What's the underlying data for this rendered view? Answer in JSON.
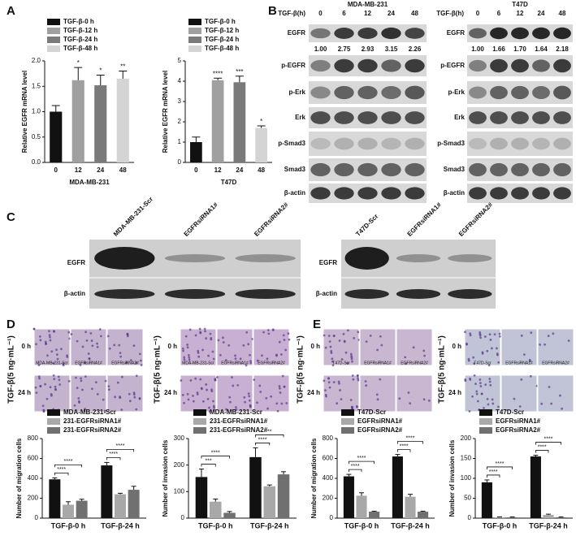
{
  "figure": {
    "panel_labels": [
      "A",
      "B",
      "C",
      "D",
      "E"
    ]
  },
  "blots_b": {
    "cell_lines": [
      "MDA-MB-231",
      "T47D"
    ],
    "time_label": "TGF-β(h)",
    "times": [
      "0",
      "6",
      "12",
      "24",
      "48"
    ],
    "rows": [
      "EGFR",
      "p-EGFR",
      "p-Erk",
      "Erk",
      "p-Smad3",
      "Smad3",
      "β-actin"
    ],
    "egfr_quant": [
      [
        "1.00",
        "2.75",
        "2.93",
        "3.15",
        "2.26"
      ],
      [
        "1.00",
        "1.66",
        "1.70",
        "1.64",
        "2.18"
      ]
    ]
  },
  "blots_c": {
    "lanes": [
      [
        "MDA-MB-231-Scr",
        "EGFRsiRNA1#",
        "EGFRsiRNA2#"
      ],
      [
        "T47D-Scr",
        "EGFRsiRNA1#",
        "EGFRsiRNA2#"
      ]
    ],
    "rows": [
      "EGFR",
      "β-actin"
    ]
  },
  "micrographs": {
    "side_label": "TGF-β(5 ng·mL⁻¹)",
    "rows": [
      "0 h",
      "24 h"
    ],
    "lanes_d": [
      "MDA-MB-231-Scr",
      "EGFRsiRNA1#",
      "EGFRsiRNA2#"
    ],
    "lanes_e": [
      "T47D-Scr",
      "EGFRsiRNA1#",
      "EGFRsiRNA2#"
    ]
  },
  "chart_data": [
    {
      "type": "bar",
      "xlabel": "MDA-MB-231",
      "ylabel": "Relative EGFR mRNA level",
      "categories": [
        "0",
        "12",
        "24",
        "48"
      ],
      "values": [
        1.0,
        1.62,
        1.52,
        1.65
      ],
      "errors": [
        0.12,
        0.25,
        0.2,
        0.15
      ],
      "colors": [
        "#111111",
        "#a0a0a0",
        "#7a7a7a",
        "#d4d4d4"
      ],
      "legend": [
        "TGF-β-0 h",
        "TGF-β-12 h",
        "TGF-β-24 h",
        "TGF-β-48 h"
      ],
      "annotations": [
        null,
        "*",
        "*",
        "**"
      ],
      "ylim": [
        0,
        2
      ],
      "yticks": [
        {
          "value": 0,
          "label": "0.0"
        },
        {
          "value": 0.5,
          "label": "0.5"
        },
        {
          "value": 1,
          "label": "1.0"
        },
        {
          "value": 1.5,
          "label": "1.5"
        },
        {
          "value": 2,
          "label": "2.0"
        }
      ]
    },
    {
      "type": "bar",
      "xlabel": "T47D",
      "ylabel": "Relative EGFR mRNA level",
      "categories": [
        "0",
        "12",
        "24",
        "48"
      ],
      "values": [
        1.0,
        4.05,
        3.95,
        1.7
      ],
      "errors": [
        0.25,
        0.1,
        0.3,
        0.1
      ],
      "colors": [
        "#111111",
        "#a0a0a0",
        "#7a7a7a",
        "#d4d4d4"
      ],
      "legend": [
        "TGF-β-0 h",
        "TGF-β-12 h",
        "TGF-β-24 h",
        "TGF-β-48 h"
      ],
      "annotations": [
        null,
        "****",
        "***",
        "*"
      ],
      "ylim": [
        0,
        5
      ],
      "yticks": [
        0,
        1,
        2,
        3,
        4,
        5
      ]
    },
    {
      "type": "grouped_bar",
      "ylabel": "Number of migration cells",
      "categories": [
        "TGF-β-0 h",
        "TGF-β-24 h"
      ],
      "series": [
        {
          "name": "MDA-MB-231-Scr",
          "color": "#111111",
          "values": [
            390,
            530
          ],
          "errors": [
            15,
            30
          ]
        },
        {
          "name": "231-EGFRsiRNA1#",
          "color": "#a8a8a8",
          "values": [
            135,
            240
          ],
          "errors": [
            30,
            10
          ]
        },
        {
          "name": "231-EGFRsiRNA2#",
          "color": "#707070",
          "values": [
            175,
            285
          ],
          "errors": [
            15,
            35
          ]
        }
      ],
      "annotations": [
        [
          "****",
          "****"
        ],
        [
          "****",
          "****"
        ]
      ],
      "ylim": [
        0,
        800
      ],
      "yticks": [
        0,
        200,
        400,
        600,
        800
      ]
    },
    {
      "type": "grouped_bar",
      "ylabel": "Number of invasion cells",
      "categories": [
        "TGF-β-0 h",
        "TGF-β-24 h"
      ],
      "series": [
        {
          "name": "MDA-MB-231-Scr",
          "color": "#111111",
          "values": [
            155,
            230
          ],
          "errors": [
            30,
            35
          ]
        },
        {
          "name": "231-EGFRsiRNA1#",
          "color": "#a8a8a8",
          "values": [
            62,
            120
          ],
          "errors": [
            10,
            5
          ]
        },
        {
          "name": "231-EGFRsiRNA2#",
          "color": "#707070",
          "values": [
            20,
            165
          ],
          "errors": [
            5,
            10
          ]
        }
      ],
      "annotations": [
        [
          "***",
          "****"
        ],
        [
          "****",
          "**"
        ]
      ],
      "ylim": [
        0,
        300
      ],
      "yticks": [
        0,
        100,
        200,
        300
      ]
    },
    {
      "type": "grouped_bar",
      "ylabel": "Number of migration cells",
      "categories": [
        "TGF-β-0 h",
        "TGF-β-24 h"
      ],
      "series": [
        {
          "name": "T47D-Scr",
          "color": "#111111",
          "values": [
            420,
            620
          ],
          "errors": [
            20,
            20
          ]
        },
        {
          "name": "EGFRsiRNA1#",
          "color": "#a8a8a8",
          "values": [
            225,
            215
          ],
          "errors": [
            30,
            25
          ]
        },
        {
          "name": "EGFRsiRNA2#",
          "color": "#707070",
          "values": [
            65,
            65
          ],
          "errors": [
            5,
            5
          ]
        }
      ],
      "annotations": [
        [
          "****",
          "****"
        ],
        [
          "****",
          "****"
        ]
      ],
      "ylim": [
        0,
        800
      ],
      "yticks": [
        0,
        200,
        400,
        600,
        800
      ]
    },
    {
      "type": "grouped_bar",
      "ylabel": "Number of invasion cells",
      "categories": [
        "TGF-β-0 h",
        "TGF-β-24 h"
      ],
      "series": [
        {
          "name": "T47D-Scr",
          "color": "#111111",
          "values": [
            90,
            155
          ],
          "errors": [
            6,
            3
          ]
        },
        {
          "name": "EGFRsiRNA1#",
          "color": "#a8a8a8",
          "values": [
            2,
            8
          ],
          "errors": [
            1,
            2
          ]
        },
        {
          "name": "EGFRsiRNA2#",
          "color": "#707070",
          "values": [
            2,
            2
          ],
          "errors": [
            1,
            1
          ]
        }
      ],
      "annotations": [
        [
          "****",
          "****"
        ],
        [
          "****",
          "****"
        ]
      ],
      "ylim": [
        0,
        200
      ],
      "yticks": [
        0,
        50,
        100,
        150,
        200
      ]
    }
  ]
}
